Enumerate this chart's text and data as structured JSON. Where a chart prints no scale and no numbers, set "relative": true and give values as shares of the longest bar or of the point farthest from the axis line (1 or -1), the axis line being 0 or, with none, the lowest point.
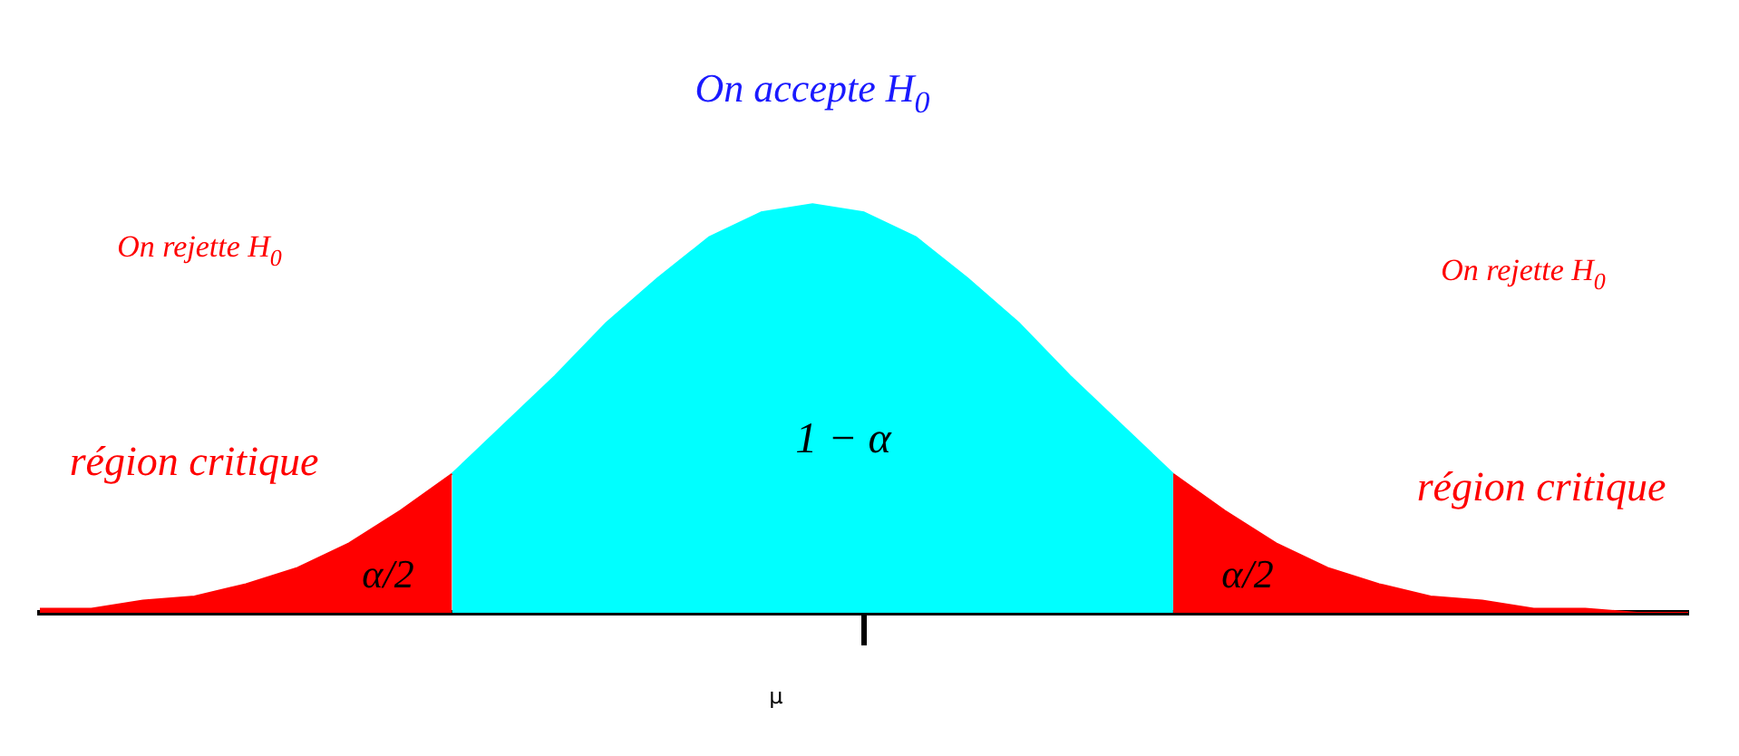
{
  "chart_data": {
    "type": "area",
    "relative": true,
    "legend": false,
    "categories": [
      null,
      null,
      null,
      null,
      null,
      null,
      null,
      null,
      null,
      null,
      null,
      null,
      null,
      null,
      null,
      null,
      null,
      null,
      null,
      null,
      null,
      null,
      null,
      null,
      null,
      null,
      null,
      null,
      null,
      null,
      null,
      null,
      null
    ],
    "series": [
      {
        "color": "#ff0000",
        "values": [
          0.01,
          0.01,
          0.03,
          0.04,
          0.07,
          0.11,
          0.17,
          0.25,
          0.34,
          null,
          null,
          null,
          null,
          null,
          null,
          null,
          null,
          null,
          null,
          null,
          null,
          null,
          null,
          null,
          null,
          null,
          null,
          null,
          null,
          null,
          null,
          null,
          null
        ]
      },
      {
        "color": "#00ffff",
        "values": [
          null,
          null,
          null,
          null,
          null,
          null,
          null,
          null,
          0.34,
          0.46,
          0.58,
          0.71,
          0.82,
          0.92,
          0.98,
          1,
          0.98,
          0.92,
          0.82,
          0.71,
          0.58,
          0.46,
          0.34,
          null,
          null,
          null,
          null,
          null,
          null,
          null,
          null,
          null,
          null
        ]
      },
      {
        "color": "#ff0000",
        "values": [
          null,
          null,
          null,
          null,
          null,
          null,
          null,
          null,
          null,
          null,
          null,
          null,
          null,
          null,
          null,
          null,
          null,
          null,
          null,
          null,
          null,
          null,
          0.34,
          0.25,
          0.17,
          0.11,
          0.07,
          0.04,
          0.03,
          0.01,
          0.01,
          0,
          0
        ]
      }
    ],
    "annotations": [
      "On accepte H$_{0}$",
      "On rejette H$_{0}$",
      "On rejette H$_{0}$",
      "région critique",
      "région critique",
      "α/2",
      "α/2",
      "1 − α",
      "μ"
    ]
  }
}
